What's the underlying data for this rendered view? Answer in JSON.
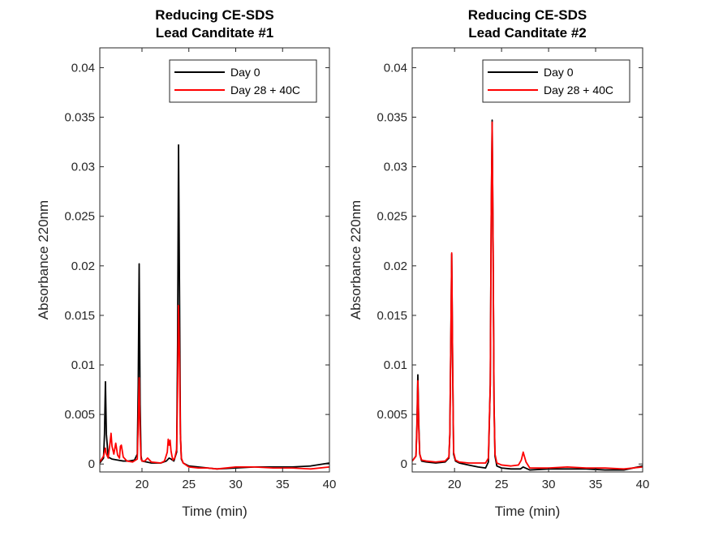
{
  "chart_data": [
    {
      "type": "line",
      "title_lines": [
        "Reducing CE-SDS",
        "Lead Canditate #1"
      ],
      "xlabel": "Time (min)",
      "ylabel": "Absorbance 220nm",
      "xlim": [
        15.5,
        40
      ],
      "ylim": [
        -0.0008,
        0.042
      ],
      "xticks": [
        20,
        25,
        30,
        35,
        40
      ],
      "xtick_labels": [
        "20",
        "25",
        "30",
        "35",
        "40"
      ],
      "yticks": [
        0,
        0.005,
        0.01,
        0.015,
        0.02,
        0.025,
        0.03,
        0.035,
        0.04
      ],
      "ytick_labels": [
        "0",
        "0.005",
        "0.01",
        "0.015",
        "0.02",
        "0.025",
        "0.03",
        "0.035",
        "0.04"
      ],
      "grid": false,
      "legend_position": "top-right",
      "series": [
        {
          "name": "Day 0",
          "color": "#000000",
          "x": [
            15.5,
            15.9,
            16.0,
            16.1,
            16.2,
            16.4,
            16.8,
            17.4,
            18.0,
            18.6,
            19.2,
            19.5,
            19.6,
            19.7,
            19.8,
            19.9,
            20.0,
            20.5,
            21.0,
            22.0,
            22.6,
            22.9,
            23.1,
            23.4,
            23.7,
            23.8,
            23.9,
            24.0,
            24.1,
            24.2,
            24.4,
            25.0,
            26.0,
            27.0,
            28.0,
            30.0,
            32.0,
            34.0,
            36.0,
            38.0,
            40.0
          ],
          "y": [
            0.0001,
            0.0006,
            0.003,
            0.0083,
            0.003,
            0.0007,
            0.0005,
            0.0004,
            0.0003,
            0.0003,
            0.0004,
            0.001,
            0.008,
            0.0202,
            0.006,
            0.0008,
            0.0003,
            0.0002,
            0.0001,
            0.0001,
            0.0003,
            0.0006,
            0.0005,
            0.0003,
            0.0012,
            0.012,
            0.0322,
            0.018,
            0.003,
            0.0005,
            0.0001,
            -0.0002,
            -0.0003,
            -0.0004,
            -0.0005,
            -0.0004,
            -0.0003,
            -0.0003,
            -0.0003,
            -0.0002,
            0.0001
          ]
        },
        {
          "name": "Day 28 + 40C",
          "color": "#ff0000",
          "x": [
            15.5,
            15.9,
            16.0,
            16.1,
            16.2,
            16.4,
            16.6,
            16.7,
            16.8,
            17.0,
            17.2,
            17.4,
            17.6,
            17.7,
            17.8,
            18.0,
            18.4,
            19.0,
            19.5,
            19.6,
            19.7,
            19.8,
            19.9,
            20.0,
            20.3,
            20.6,
            21.0,
            22.0,
            22.4,
            22.7,
            22.8,
            22.9,
            23.0,
            23.1,
            23.2,
            23.3,
            23.5,
            23.7,
            23.8,
            23.9,
            24.0,
            24.1,
            24.2,
            24.4,
            25.0,
            26.0,
            27.0,
            28.0,
            30.0,
            32.0,
            34.0,
            36.0,
            38.0,
            40.0
          ],
          "y": [
            0.0002,
            0.0008,
            0.0012,
            0.0016,
            0.001,
            0.0006,
            0.0022,
            0.0031,
            0.0018,
            0.001,
            0.0021,
            0.0009,
            0.0006,
            0.0018,
            0.0019,
            0.0007,
            0.0003,
            0.0002,
            0.0005,
            0.004,
            0.0087,
            0.003,
            0.0005,
            0.0003,
            0.0003,
            0.0006,
            0.0002,
            0.0001,
            0.0003,
            0.0012,
            0.0025,
            0.0019,
            0.0024,
            0.0013,
            0.0008,
            0.0004,
            0.0006,
            0.0015,
            0.0075,
            0.016,
            0.011,
            0.003,
            0.0006,
            0.0001,
            -0.0003,
            -0.0004,
            -0.0004,
            -0.0005,
            -0.0003,
            -0.0003,
            -0.0004,
            -0.0004,
            -0.0005,
            -0.0003
          ]
        }
      ]
    },
    {
      "type": "line",
      "title_lines": [
        "Reducing CE-SDS",
        "Lead Canditate #2"
      ],
      "xlabel": "Time (min)",
      "ylabel": "Absorbance 220nm",
      "xlim": [
        15.5,
        40
      ],
      "ylim": [
        -0.0008,
        0.042
      ],
      "xticks": [
        20,
        25,
        30,
        35,
        40
      ],
      "xtick_labels": [
        "20",
        "25",
        "30",
        "35",
        "40"
      ],
      "yticks": [
        0,
        0.005,
        0.01,
        0.015,
        0.02,
        0.025,
        0.03,
        0.035,
        0.04
      ],
      "ytick_labels": [
        "0",
        "0.005",
        "0.01",
        "0.015",
        "0.02",
        "0.025",
        "0.03",
        "0.035",
        "0.04"
      ],
      "grid": false,
      "legend_position": "top-right",
      "series": [
        {
          "name": "Day 0",
          "color": "#000000",
          "x": [
            15.5,
            15.9,
            16.0,
            16.1,
            16.2,
            16.3,
            16.5,
            17.0,
            18.0,
            19.0,
            19.4,
            19.5,
            19.6,
            19.7,
            19.8,
            19.9,
            20.1,
            20.5,
            21.5,
            22.5,
            23.3,
            23.6,
            23.8,
            23.9,
            24.0,
            24.1,
            24.2,
            24.3,
            24.5,
            25.0,
            26.0,
            27.0,
            27.3,
            28.0,
            30.0,
            32.0,
            34.0,
            36.0,
            38.0,
            40.0
          ],
          "y": [
            0.0003,
            0.0008,
            0.004,
            0.009,
            0.004,
            0.001,
            0.0003,
            0.0002,
            0.0001,
            0.0002,
            0.0006,
            0.003,
            0.012,
            0.0212,
            0.01,
            0.001,
            0.0003,
            0.0001,
            -0.0001,
            -0.0003,
            -0.0004,
            0.0002,
            0.008,
            0.025,
            0.0347,
            0.022,
            0.006,
            0.0008,
            -0.0002,
            -0.0004,
            -0.0005,
            -0.0005,
            -0.0003,
            -0.0006,
            -0.0005,
            -0.0005,
            -0.0005,
            -0.0006,
            -0.0006,
            -0.0002
          ]
        },
        {
          "name": "Day 28 + 40C",
          "color": "#ff0000",
          "x": [
            15.5,
            15.9,
            16.0,
            16.1,
            16.2,
            16.3,
            16.5,
            17.0,
            18.0,
            19.0,
            19.4,
            19.5,
            19.6,
            19.7,
            19.8,
            19.9,
            20.1,
            20.5,
            21.5,
            22.5,
            23.3,
            23.6,
            23.8,
            23.9,
            24.0,
            24.1,
            24.2,
            24.3,
            24.5,
            25.0,
            26.0,
            26.8,
            27.1,
            27.3,
            27.6,
            28.0,
            30.0,
            32.0,
            34.0,
            36.0,
            38.0,
            40.0
          ],
          "y": [
            0.0003,
            0.0008,
            0.0035,
            0.0084,
            0.0035,
            0.001,
            0.0004,
            0.0003,
            0.0002,
            0.0003,
            0.0007,
            0.003,
            0.012,
            0.0213,
            0.01,
            0.0012,
            0.0004,
            0.0002,
            0.0001,
            0.0001,
            0.0001,
            0.0006,
            0.008,
            0.025,
            0.0345,
            0.022,
            0.006,
            0.001,
            0.0001,
            -0.0001,
            -0.0002,
            -0.0001,
            0.0004,
            0.0012,
            0.0002,
            -0.0004,
            -0.0004,
            -0.0003,
            -0.0004,
            -0.0004,
            -0.0005,
            -0.0003
          ]
        }
      ]
    }
  ]
}
